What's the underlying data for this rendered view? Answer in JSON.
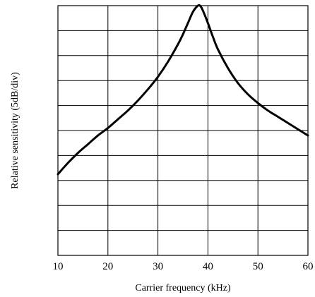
{
  "chart_data": {
    "type": "line",
    "title": "",
    "xlabel": "Carrier frequency (kHz)",
    "ylabel": "Relative sensitivity (5dB/div)",
    "xlim": [
      10,
      60
    ],
    "xticks": [
      10,
      20,
      30,
      40,
      50,
      60
    ],
    "x_tick_labels": [
      "10",
      "20",
      "30",
      "40",
      "50",
      "60"
    ],
    "ylim": [
      0,
      10
    ],
    "y_grid_divisions": 10,
    "y_unit": "div (5 dB/div)",
    "grid": true,
    "series": [
      {
        "color": "#000000",
        "x": [
          10,
          12,
          14,
          16,
          18,
          20,
          22,
          24,
          26,
          28,
          30,
          32,
          34,
          35,
          36,
          37,
          38,
          38.5,
          39,
          40,
          41,
          42,
          44,
          46,
          48,
          50,
          52,
          54,
          56,
          58,
          60
        ],
        "y": [
          3.25,
          3.7,
          4.1,
          4.45,
          4.8,
          5.1,
          5.45,
          5.8,
          6.2,
          6.65,
          7.15,
          7.75,
          8.45,
          8.85,
          9.3,
          9.75,
          10.0,
          9.98,
          9.8,
          9.3,
          8.75,
          8.25,
          7.5,
          6.9,
          6.45,
          6.1,
          5.8,
          5.55,
          5.3,
          5.05,
          4.8
        ]
      }
    ]
  }
}
